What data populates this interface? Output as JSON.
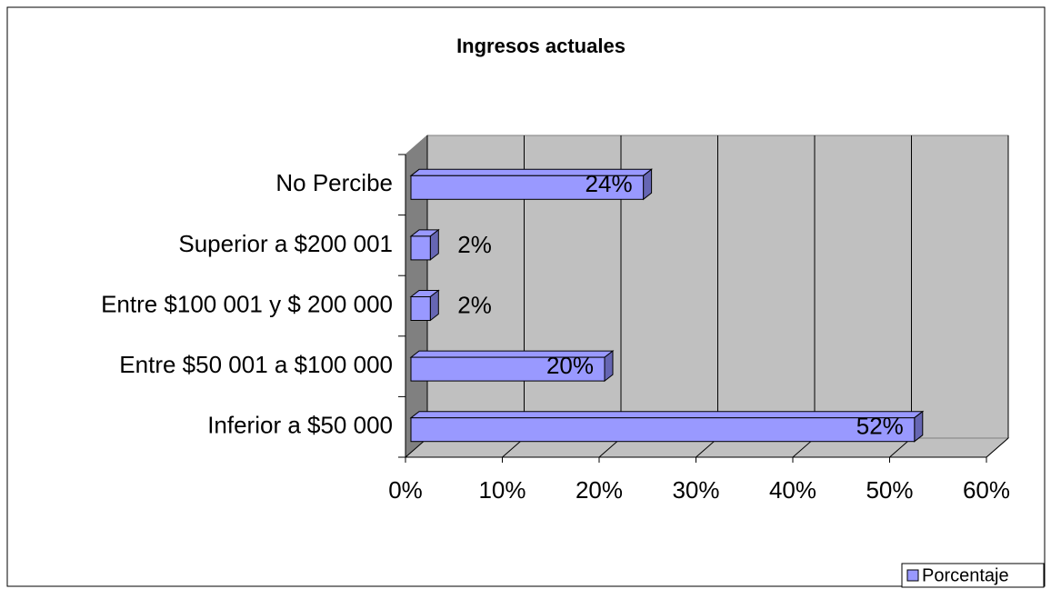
{
  "chart_data": {
    "type": "bar",
    "orientation": "horizontal",
    "title": "Ingresos actuales",
    "categories": [
      "Inferior a $50 000",
      "Entre $50 001 a $100 000",
      "Entre $100 001 y $ 200 000",
      "Superior a $200 001",
      "No Percibe"
    ],
    "series": [
      {
        "name": "Porcentaje",
        "color": "#9999ff",
        "values": [
          52,
          20,
          2,
          2,
          24
        ],
        "value_labels": [
          "52%",
          "20%",
          "2%",
          "2%",
          "24%"
        ]
      }
    ],
    "xlim": [
      0,
      60
    ],
    "xticks": [
      {
        "value": 0,
        "label": "0%"
      },
      {
        "value": 10,
        "label": "10%"
      },
      {
        "value": 20,
        "label": "20%"
      },
      {
        "value": 30,
        "label": "30%"
      },
      {
        "value": 40,
        "label": "40%"
      },
      {
        "value": 50,
        "label": "50%"
      },
      {
        "value": 60,
        "label": "60%"
      }
    ],
    "grid": true,
    "legend": "bottom-right"
  }
}
